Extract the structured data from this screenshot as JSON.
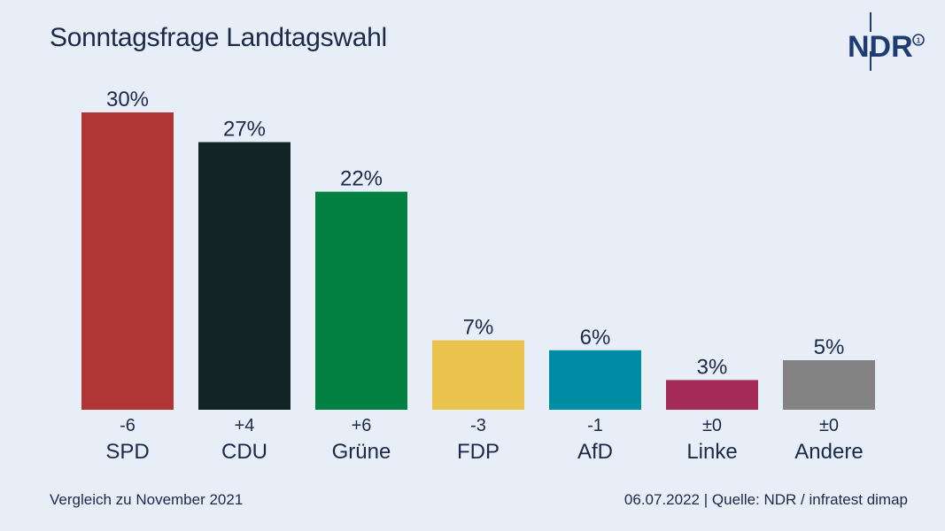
{
  "header": {
    "title": "Sonntagsfrage Landtagswahl",
    "logo_text": "NDR"
  },
  "footer": {
    "comparison": "Vergleich zu November 2021",
    "date": "06.07.2022",
    "separator": "|",
    "source": "Quelle: NDR / infratest dimap"
  },
  "chart_data": {
    "type": "bar",
    "title": "Sonntagsfrage Landtagswahl",
    "xlabel": "",
    "ylabel": "",
    "ylim": [
      0,
      30
    ],
    "grid": false,
    "categories": [
      "SPD",
      "CDU",
      "Grüne",
      "FDP",
      "AfD",
      "Linke",
      "Andere"
    ],
    "values": [
      30,
      27,
      22,
      7,
      6,
      3,
      5
    ],
    "value_labels": [
      "30%",
      "27%",
      "22%",
      "7%",
      "6%",
      "3%",
      "5%"
    ],
    "changes": [
      "-6",
      "+4",
      "+6",
      "-3",
      "-1",
      "±0",
      "±0"
    ],
    "colors": [
      "#b03636",
      "#122424",
      "#028042",
      "#e9c34d",
      "#008ca4",
      "#a42b56",
      "#838383"
    ]
  }
}
